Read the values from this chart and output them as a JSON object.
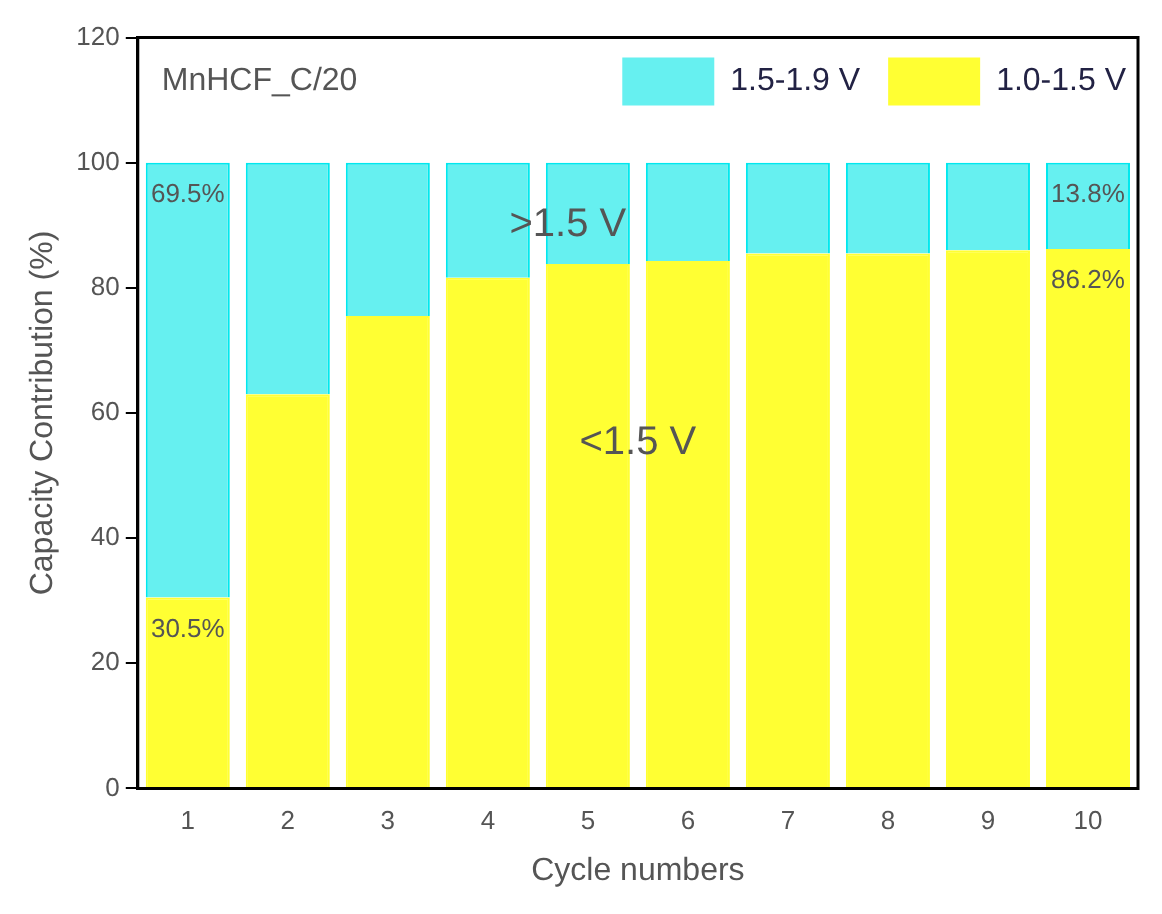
{
  "chart_data": {
    "type": "bar",
    "title": "MnHCF_C/20",
    "xlabel": "Cycle numbers",
    "ylabel": "Capacity Contribution (%)",
    "categories": [
      "1",
      "2",
      "3",
      "4",
      "5",
      "6",
      "7",
      "8",
      "9",
      "10"
    ],
    "stacked": true,
    "series": [
      {
        "name": "1.0-1.5 V",
        "color": "#ffff33",
        "values": [
          30.5,
          63,
          75.5,
          81.6,
          83.8,
          84.3,
          85.5,
          85.5,
          86,
          86.2
        ],
        "value_labels": [
          "30.5%",
          null,
          null,
          null,
          null,
          null,
          null,
          null,
          null,
          "86.2%"
        ]
      },
      {
        "name": "1.5-1.9 V",
        "color": "#66f0f0",
        "values": [
          69.5,
          37,
          24.5,
          18.4,
          16.2,
          15.7,
          14.5,
          14.5,
          14,
          13.8
        ],
        "value_labels": [
          "69.5%",
          null,
          null,
          null,
          null,
          null,
          null,
          null,
          null,
          "13.8%"
        ]
      }
    ],
    "annotations": [
      ">1.5 V",
      "<1.5 V"
    ],
    "ylim": [
      0,
      120
    ],
    "yticks": [
      0,
      20,
      40,
      60,
      80,
      100,
      120
    ],
    "grid": false,
    "legend": "top right"
  }
}
